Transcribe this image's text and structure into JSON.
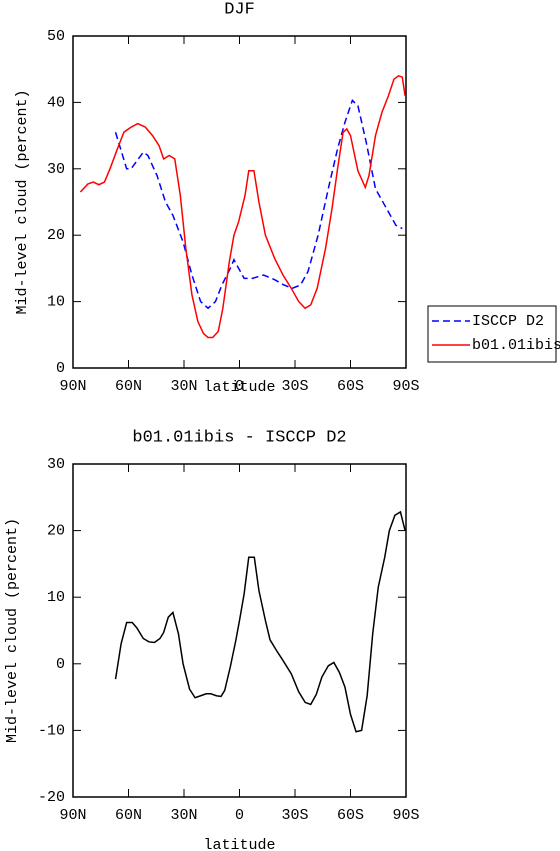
{
  "chart_data": [
    {
      "type": "line",
      "title": "DJF",
      "xlabel": "latitude",
      "ylabel": "Mid-level cloud (percent)",
      "xlim": [
        90,
        -90
      ],
      "xticks": [
        {
          "value": 90,
          "label": "90N"
        },
        {
          "value": 60,
          "label": "60N"
        },
        {
          "value": 30,
          "label": "30N"
        },
        0,
        {
          "value": -30,
          "label": "30S"
        },
        {
          "value": -60,
          "label": "60S"
        },
        {
          "value": -90,
          "label": "90S"
        }
      ],
      "ylim": [
        0,
        50
      ],
      "yticks": [
        0,
        10,
        20,
        30,
        40,
        50
      ],
      "legend": "right",
      "series": [
        {
          "name": "ISCCP D2",
          "color": "#0000ff",
          "dash": "dashed",
          "x": [
            67,
            61,
            58.6,
            52,
            49.5,
            44.6,
            40,
            36,
            30.5,
            25.7,
            21,
            17,
            13,
            9.5,
            5,
            3,
            -2.5,
            -7,
            -13,
            -19,
            -24,
            -28.5,
            -33,
            -37,
            -42.5,
            -48,
            -53,
            -57,
            -61,
            -64,
            -68.5,
            -73.5,
            -79.5,
            -84.5,
            -88
          ],
          "values": [
            35.5,
            30,
            30,
            32.5,
            32,
            29,
            25,
            23,
            19,
            14,
            10,
            9,
            10,
            12.5,
            15,
            16.3,
            13.5,
            13.5,
            14,
            13.3,
            12.5,
            12,
            12.5,
            14.5,
            20,
            27,
            33,
            37,
            40.3,
            39.5,
            34,
            27,
            24,
            21.5,
            21
          ]
        },
        {
          "name": "b01.01ibis",
          "color": "#ff0000",
          "dash": "solid",
          "x": [
            86,
            82,
            79,
            76,
            73,
            70,
            66,
            62.5,
            59,
            55,
            51,
            47,
            43.5,
            41,
            38,
            35,
            32,
            29,
            25.7,
            22.5,
            19.5,
            17,
            14.5,
            11.5,
            9,
            5.5,
            3,
            0.5,
            -3,
            -5,
            -7.8,
            -10.5,
            -14,
            -19,
            -23.5,
            -28,
            -32,
            -35.5,
            -38.5,
            -42,
            -46.5,
            -50,
            -53,
            -56,
            -58,
            -60,
            -64,
            -68,
            -70,
            -73.5,
            -77,
            -80.5,
            -83.5,
            -86,
            -88,
            -89.5
          ],
          "values": [
            26.5,
            27.7,
            28,
            27.6,
            28,
            30,
            33,
            35.5,
            36.2,
            36.8,
            36.3,
            35,
            33.5,
            31.5,
            32,
            31.5,
            26,
            18,
            11,
            7,
            5.2,
            4.6,
            4.6,
            5.5,
            9,
            16,
            20,
            22,
            26,
            29.7,
            29.7,
            25,
            20,
            16.5,
            14,
            12,
            10,
            9,
            9.5,
            12,
            18,
            24,
            30,
            35.5,
            36,
            35,
            29.7,
            27.2,
            29,
            35,
            38.5,
            41,
            43.5,
            44,
            43.8,
            41
          ]
        }
      ]
    },
    {
      "type": "line",
      "title": "b01.01ibis - ISCCP D2",
      "xlabel": "latitude",
      "ylabel": "Mid-level cloud (percent)",
      "xlim": [
        90,
        -90
      ],
      "xticks": [
        {
          "value": 90,
          "label": "90N"
        },
        {
          "value": 60,
          "label": "60N"
        },
        {
          "value": 30,
          "label": "30N"
        },
        0,
        {
          "value": -30,
          "label": "30S"
        },
        {
          "value": -60,
          "label": "60S"
        },
        {
          "value": -90,
          "label": "90S"
        }
      ],
      "ylim": [
        -20,
        30
      ],
      "yticks": [
        -20,
        -10,
        0,
        10,
        20,
        30
      ],
      "series": [
        {
          "color": "#000000",
          "dash": "solid",
          "x": [
            67,
            64,
            61,
            58,
            55.5,
            52,
            49,
            46,
            43,
            41,
            38.5,
            36,
            33,
            30.5,
            27,
            24,
            21,
            18,
            15.5,
            12.5,
            10,
            8,
            5,
            2,
            0,
            -2.5,
            -5,
            -8,
            -10.5,
            -14,
            -16.5,
            -20,
            -23.5,
            -28,
            -32,
            -35.5,
            -38.5,
            -41.5,
            -44.5,
            -48,
            -51,
            -54,
            -57,
            -60,
            -63,
            -66,
            -69,
            -72,
            -75,
            -78.5,
            -81,
            -84,
            -87,
            -89.5
          ],
          "values": [
            -2.3,
            3,
            6.2,
            6.2,
            5.4,
            3.8,
            3.3,
            3.2,
            3.8,
            4.7,
            7,
            7.7,
            4.5,
            0,
            -3.8,
            -5.1,
            -4.8,
            -4.5,
            -4.5,
            -4.8,
            -4.9,
            -4,
            -0.5,
            3.5,
            6.5,
            10.5,
            16,
            16,
            11,
            6.5,
            3.6,
            2,
            0.5,
            -1.5,
            -4.2,
            -5.8,
            -6.1,
            -4.6,
            -2,
            -0.3,
            0.2,
            -1.3,
            -3.5,
            -7.6,
            -10.2,
            -10,
            -4.8,
            4.5,
            11.5,
            16,
            20,
            22.3,
            22.8,
            20
          ]
        }
      ]
    }
  ]
}
